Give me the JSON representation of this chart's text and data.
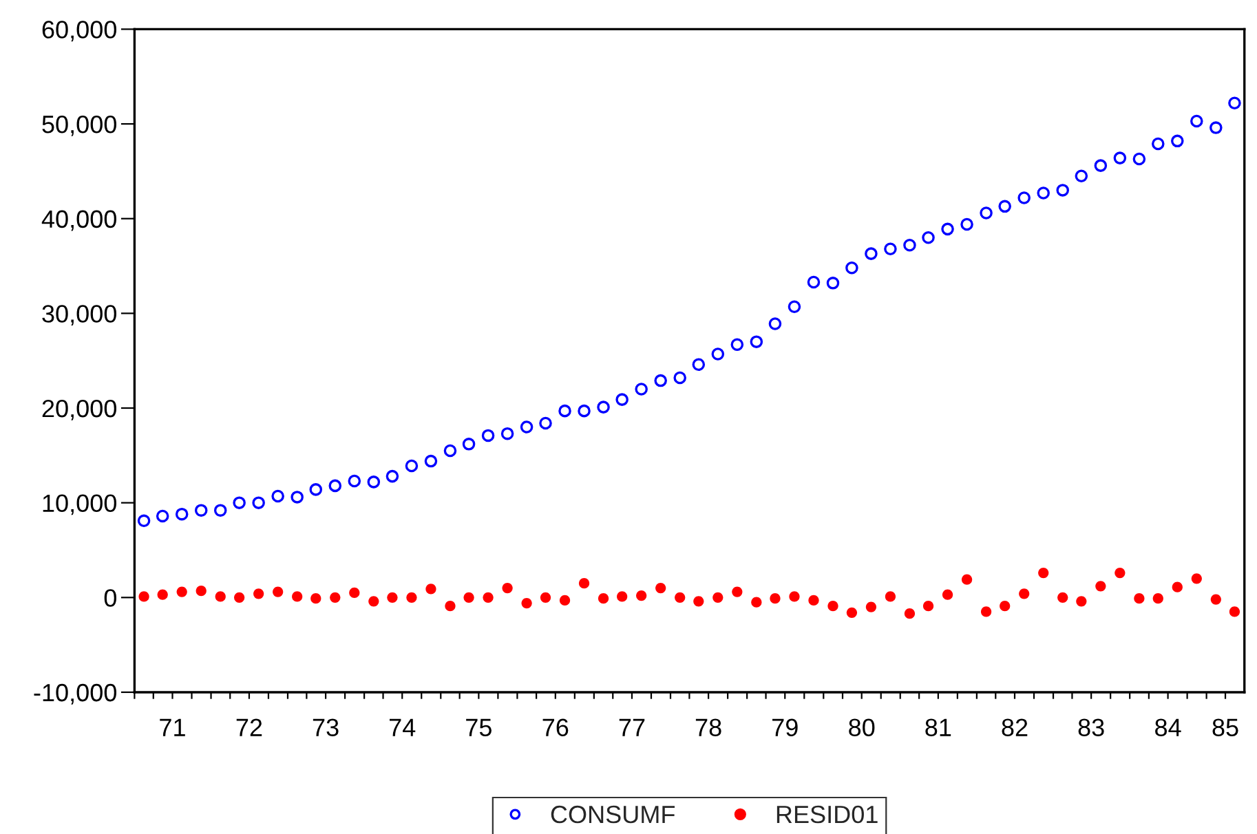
{
  "chart_data": {
    "type": "scatter",
    "x": [
      "1971-02-15",
      "1971-05-15",
      "1971-08-15",
      "1971-11-15",
      "1972-02-15",
      "1972-05-15",
      "1972-08-15",
      "1972-11-15",
      "1973-02-15",
      "1973-05-15",
      "1973-08-15",
      "1973-11-15",
      "1974-02-15",
      "1974-05-15",
      "1974-08-15",
      "1974-11-15",
      "1975-02-15",
      "1975-05-15",
      "1975-08-15",
      "1975-11-15",
      "1976-02-15",
      "1976-05-15",
      "1976-08-15",
      "1976-11-15",
      "1977-02-15",
      "1977-05-15",
      "1977-08-15",
      "1977-11-15",
      "1978-02-15",
      "1978-05-15",
      "1978-08-15",
      "1978-11-15",
      "1979-02-15",
      "1979-05-15",
      "1979-08-15",
      "1979-11-15",
      "1980-02-15",
      "1980-05-15",
      "1980-08-15",
      "1980-11-15",
      "1981-02-15",
      "1981-05-15",
      "1981-08-15",
      "1981-11-15",
      "1982-02-15",
      "1982-05-15",
      "1982-08-15",
      "1982-11-15",
      "1983-02-15",
      "1983-05-15",
      "1983-08-15",
      "1983-11-15",
      "1984-02-15",
      "1984-05-15",
      "1984-08-15",
      "1984-11-15",
      "1985-02-15",
      "1985-05-15"
    ],
    "series": [
      {
        "name": "CONSUMF",
        "color": "#0000ff",
        "values": [
          8100,
          8600,
          8800,
          9200,
          9200,
          10000,
          10000,
          10700,
          10600,
          11400,
          11800,
          12300,
          12200,
          12800,
          13900,
          14400,
          15500,
          16200,
          17100,
          17300,
          18000,
          18400,
          19700,
          19700,
          20100,
          20900,
          22000,
          22900,
          23200,
          24600,
          25700,
          26700,
          27000,
          28900,
          30700,
          33300,
          33200,
          34800,
          36300,
          36800,
          37200,
          38000,
          38900,
          39400,
          40600,
          41300,
          42200,
          42700,
          43000,
          44500,
          45600,
          46400,
          46300,
          47900,
          48200,
          50300,
          49600,
          52200
        ]
      },
      {
        "name": "RESID01",
        "color": "#ff0000",
        "values": [
          100,
          300,
          600,
          700,
          100,
          0,
          400,
          600,
          100,
          -100,
          0,
          500,
          -400,
          0,
          0,
          900,
          -900,
          0,
          0,
          1000,
          -600,
          0,
          -300,
          1500,
          -100,
          100,
          200,
          1000,
          0,
          -400,
          0,
          600,
          -500,
          -100,
          100,
          -300,
          -900,
          -1600,
          -1000,
          100,
          -1700,
          -900,
          300,
          1900,
          -1500,
          -900,
          400,
          2600,
          0,
          -400,
          1200,
          2600,
          -100,
          -100,
          1100,
          2000,
          -200,
          -1500
        ]
      }
    ],
    "xlim": [
      "1971-01-01",
      "1985-07-01"
    ],
    "xticks": [
      {
        "value": "1971-01-01",
        "label": null
      },
      {
        "value": "1971-04-01",
        "label": null
      },
      {
        "value": "1971-07-01",
        "label": "71"
      },
      {
        "value": "1971-10-01",
        "label": null
      },
      {
        "value": "1972-01-01",
        "label": null
      },
      {
        "value": "1972-04-01",
        "label": null
      },
      {
        "value": "1972-07-01",
        "label": "72"
      },
      {
        "value": "1972-10-01",
        "label": null
      },
      {
        "value": "1973-01-01",
        "label": null
      },
      {
        "value": "1973-04-01",
        "label": null
      },
      {
        "value": "1973-07-01",
        "label": "73"
      },
      {
        "value": "1973-10-01",
        "label": null
      },
      {
        "value": "1974-01-01",
        "label": null
      },
      {
        "value": "1974-04-01",
        "label": null
      },
      {
        "value": "1974-07-01",
        "label": "74"
      },
      {
        "value": "1974-10-01",
        "label": null
      },
      {
        "value": "1975-01-01",
        "label": null
      },
      {
        "value": "1975-04-01",
        "label": null
      },
      {
        "value": "1975-07-01",
        "label": "75"
      },
      {
        "value": "1975-10-01",
        "label": null
      },
      {
        "value": "1976-01-01",
        "label": null
      },
      {
        "value": "1976-04-01",
        "label": null
      },
      {
        "value": "1976-07-01",
        "label": "76"
      },
      {
        "value": "1976-10-01",
        "label": null
      },
      {
        "value": "1977-01-01",
        "label": null
      },
      {
        "value": "1977-04-01",
        "label": null
      },
      {
        "value": "1977-07-01",
        "label": "77"
      },
      {
        "value": "1977-10-01",
        "label": null
      },
      {
        "value": "1978-01-01",
        "label": null
      },
      {
        "value": "1978-04-01",
        "label": null
      },
      {
        "value": "1978-07-01",
        "label": "78"
      },
      {
        "value": "1978-10-01",
        "label": null
      },
      {
        "value": "1979-01-01",
        "label": null
      },
      {
        "value": "1979-04-01",
        "label": null
      },
      {
        "value": "1979-07-01",
        "label": "79"
      },
      {
        "value": "1979-10-01",
        "label": null
      },
      {
        "value": "1980-01-01",
        "label": null
      },
      {
        "value": "1980-04-01",
        "label": null
      },
      {
        "value": "1980-07-01",
        "label": "80"
      },
      {
        "value": "1980-10-01",
        "label": null
      },
      {
        "value": "1981-01-01",
        "label": null
      },
      {
        "value": "1981-04-01",
        "label": null
      },
      {
        "value": "1981-07-01",
        "label": "81"
      },
      {
        "value": "1981-10-01",
        "label": null
      },
      {
        "value": "1982-01-01",
        "label": null
      },
      {
        "value": "1982-04-01",
        "label": null
      },
      {
        "value": "1982-07-01",
        "label": "82"
      },
      {
        "value": "1982-10-01",
        "label": null
      },
      {
        "value": "1983-01-01",
        "label": null
      },
      {
        "value": "1983-04-01",
        "label": null
      },
      {
        "value": "1983-07-01",
        "label": "83"
      },
      {
        "value": "1983-10-01",
        "label": null
      },
      {
        "value": "1984-01-01",
        "label": null
      },
      {
        "value": "1984-04-01",
        "label": null
      },
      {
        "value": "1984-07-01",
        "label": "84"
      },
      {
        "value": "1984-10-01",
        "label": null
      },
      {
        "value": "1985-01-01",
        "label": null
      },
      {
        "value": "1985-04-01",
        "label": "85"
      }
    ],
    "ylim": [
      -10000,
      60000
    ],
    "yticks": [
      {
        "value": -10000,
        "label": "-10,000"
      },
      {
        "value": 0,
        "label": "0"
      },
      {
        "value": 10000,
        "label": "10,000"
      },
      {
        "value": 20000,
        "label": "20,000"
      },
      {
        "value": 30000,
        "label": "30,000"
      },
      {
        "value": 40000,
        "label": "40,000"
      },
      {
        "value": 50000,
        "label": "50,000"
      },
      {
        "value": 60000,
        "label": "60,000"
      }
    ],
    "marker": "circle",
    "legend": "bottom"
  }
}
